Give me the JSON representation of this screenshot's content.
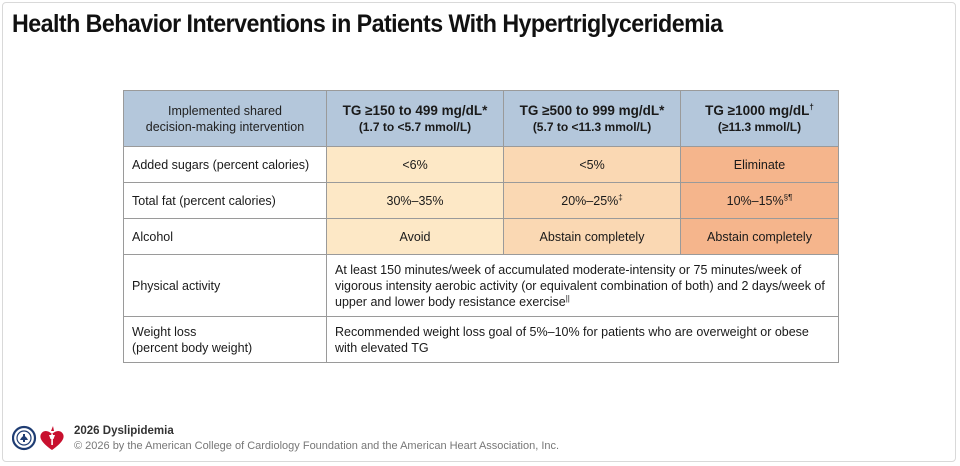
{
  "title": "Health Behavior Interventions in Patients With Hypertriglyceridemia",
  "table": {
    "header": {
      "col1_line1": "Implemented shared",
      "col1_line2": "decision-making intervention",
      "col2_main": "TG ≥150 to 499 mg/dL*",
      "col2_sub": "(1.7 to <5.7 mmol/L)",
      "col3_main": "TG ≥500 to 999 mg/dL*",
      "col3_sub": "(5.7 to <11.3 mmol/L)",
      "col4_main": "TG ≥1000 mg/dL",
      "col4_main_sup": "†",
      "col4_sub": "(≥11.3 mmol/L)"
    },
    "rows": {
      "added_sugars": {
        "label": "Added sugars (percent calories)",
        "c1": "<6%",
        "c2": "<5%",
        "c3": "Eliminate"
      },
      "total_fat": {
        "label": "Total fat (percent calories)",
        "c1": "30%–35%",
        "c2": "20%–25%",
        "c2_sup": "‡",
        "c3": "10%–15%",
        "c3_sup": "§¶"
      },
      "alcohol": {
        "label": "Alcohol",
        "c1": "Avoid",
        "c2": "Abstain completely",
        "c3": "Abstain completely"
      },
      "physical_activity": {
        "label": "Physical activity",
        "text": "At least 150 minutes/week of accumulated moderate-intensity or 75 minutes/week of vigorous intensity aerobic activity (or equivalent combination of both) and 2 days/week of upper and lower body resistance exercise",
        "sup": "||"
      },
      "weight_loss": {
        "label_line1": "Weight loss",
        "label_line2": "(percent body weight)",
        "text": "Recommended weight loss goal of 5%–10% for patients who are overweight or obese with elevated TG"
      }
    }
  },
  "footer": {
    "title": "2026 Dyslipidemia",
    "copyright": "© 2026 by the American College of Cardiology Foundation and the American Heart Association, Inc."
  },
  "colors": {
    "header_bg": "#b4c7db",
    "tier1_bg": "#fde8c6",
    "tier2_bg": "#fad8b3",
    "tier3_bg": "#f5b58c"
  }
}
